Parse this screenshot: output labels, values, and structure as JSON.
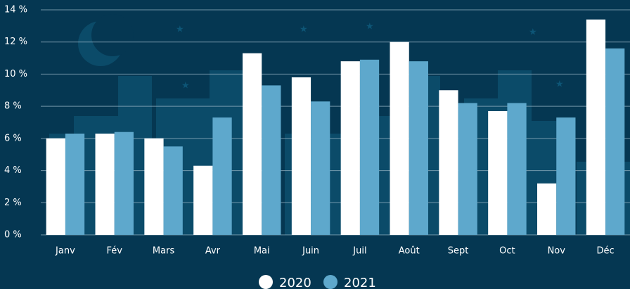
{
  "chart_data": {
    "type": "bar",
    "categories": [
      "Janv",
      "Fév",
      "Mars",
      "Avr",
      "Mai",
      "Juin",
      "Juil",
      "Août",
      "Sept",
      "Oct",
      "Nov",
      "Déc"
    ],
    "series": [
      {
        "name": "2020",
        "color": "#ffffff",
        "values": [
          6.0,
          6.3,
          6.0,
          4.3,
          11.3,
          9.8,
          10.8,
          12.0,
          9.0,
          7.7,
          3.2,
          13.4
        ]
      },
      {
        "name": "2021",
        "color": "#5ea8cc",
        "values": [
          6.3,
          6.4,
          5.5,
          7.3,
          9.3,
          8.3,
          10.9,
          10.8,
          8.2,
          8.2,
          7.3,
          11.6
        ]
      }
    ],
    "ylim": [
      0,
      14
    ],
    "yticks": [
      {
        "value": 0,
        "label": "0 %"
      },
      {
        "value": 2,
        "label": "2 %"
      },
      {
        "value": 4,
        "label": "4 %"
      },
      {
        "value": 6,
        "label": "6 %"
      },
      {
        "value": 8,
        "label": "8 %"
      },
      {
        "value": 10,
        "label": "10 %"
      },
      {
        "value": 12,
        "label": "12 %"
      },
      {
        "value": 14,
        "label": "14 %"
      }
    ],
    "grid": true
  }
}
